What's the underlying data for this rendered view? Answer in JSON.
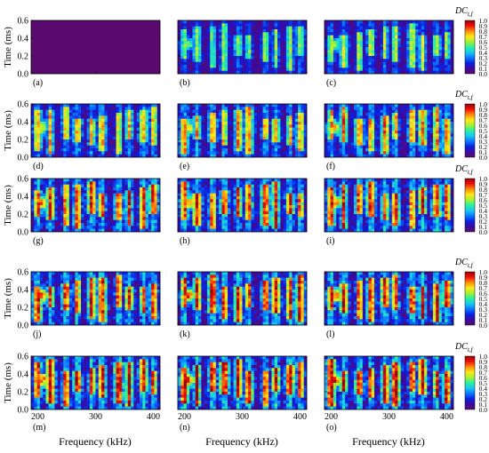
{
  "figure": {
    "xlabel": "Frequency (kHz)",
    "ylabel": "Time (ms)",
    "colorbar_label": "DC",
    "colorbar_subscript": "t,f",
    "colorbar_ticks": [
      "0.0",
      "0.1",
      "0.2",
      "0.3",
      "0.4",
      "0.5",
      "0.6",
      "0.7",
      "0.8",
      "0.9",
      "1.0"
    ],
    "colormap": [
      "#5a0a6e",
      "#3a0aa0",
      "#0a20e0",
      "#0a78ff",
      "#18c8f0",
      "#28f0a0",
      "#a8f030",
      "#ffe81a",
      "#ff8c0a",
      "#f01010",
      "#9a0000"
    ]
  },
  "chart_data": {
    "type": "heatmap",
    "panel_labels": [
      "(a)",
      "(b)",
      "(c)",
      "(d)",
      "(e)",
      "(f)",
      "(g)",
      "(h)",
      "(i)",
      "(j)",
      "(k)",
      "(l)",
      "(m)",
      "(n)",
      "(o)"
    ],
    "grid": {
      "rows": 5,
      "cols": 3
    },
    "x_range": [
      200,
      400
    ],
    "y_range": [
      0,
      0.6
    ],
    "x_ticks": [
      "200",
      "300",
      "400"
    ],
    "y_ticks": [
      "0.0",
      "0.2",
      "0.4",
      "0.6"
    ],
    "value_range": [
      0,
      1
    ],
    "panels": [
      {
        "label": "(a)",
        "level": 0.0
      },
      {
        "label": "(b)",
        "level": 0.55
      },
      {
        "label": "(c)",
        "level": 0.6
      },
      {
        "label": "(d)",
        "level": 0.72
      },
      {
        "label": "(e)",
        "level": 0.76
      },
      {
        "label": "(f)",
        "level": 0.78
      },
      {
        "label": "(g)",
        "level": 0.84
      },
      {
        "label": "(h)",
        "level": 0.86
      },
      {
        "label": "(i)",
        "level": 0.86
      },
      {
        "label": "(j)",
        "level": 0.86
      },
      {
        "label": "(k)",
        "level": 0.88
      },
      {
        "label": "(l)",
        "level": 0.88
      },
      {
        "label": "(m)",
        "level": 0.9
      },
      {
        "label": "(n)",
        "level": 0.92
      },
      {
        "label": "(o)",
        "level": 0.92
      }
    ]
  }
}
